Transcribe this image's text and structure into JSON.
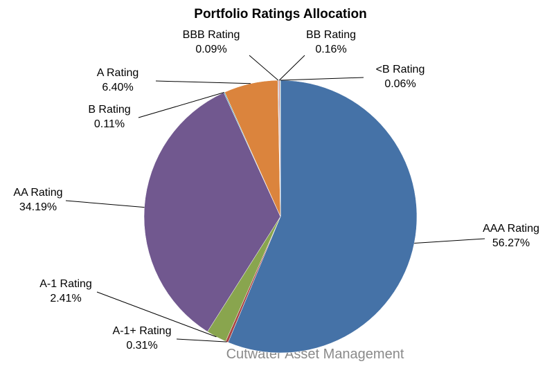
{
  "chart_data": {
    "type": "pie",
    "title": "Portfolio Ratings Allocation",
    "categories": [
      "AAA Rating",
      "A-1+ Rating",
      "A-1 Rating",
      "AA Rating",
      "B Rating",
      "A Rating",
      "BBB Rating",
      "BB Rating",
      "<B Rating"
    ],
    "values": [
      56.27,
      0.31,
      2.41,
      34.19,
      0.11,
      6.4,
      0.09,
      0.16,
      0.06
    ],
    "value_labels": [
      "56.27%",
      "0.31%",
      "2.41%",
      "34.19%",
      "0.11%",
      "6.40%",
      "0.09%",
      "0.16%",
      "0.06%"
    ],
    "colors": [
      "#4572a7",
      "#aa4643",
      "#89a54e",
      "#71588f",
      "#4198af",
      "#db843d",
      "#93a9cf",
      "#d19392",
      "#b9cd96"
    ],
    "footer": "Cutwater Asset Management"
  }
}
